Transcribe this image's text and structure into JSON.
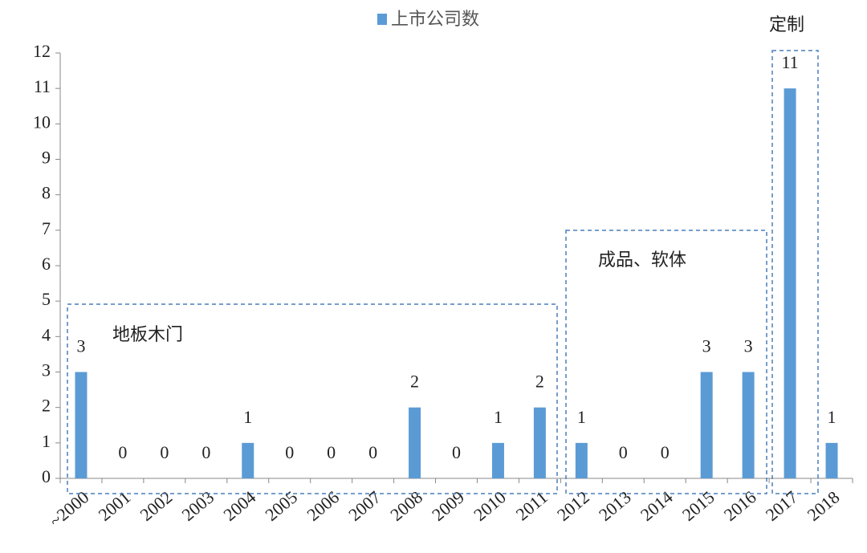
{
  "chart_data": {
    "type": "bar",
    "legend": "上市公司数",
    "annotations": [
      "地板木门",
      "成品、软体",
      "定制"
    ],
    "categories": [
      "~2000",
      "2001",
      "2002",
      "2003",
      "2004",
      "2005",
      "2006",
      "2007",
      "2008",
      "2009",
      "2010",
      "2011",
      "2012",
      "2013",
      "2014",
      "2015",
      "2016",
      "2017",
      "2018"
    ],
    "values": [
      3,
      0,
      0,
      0,
      1,
      0,
      0,
      0,
      2,
      0,
      1,
      2,
      1,
      0,
      0,
      3,
      3,
      11,
      1
    ],
    "color": "#5b9bd5",
    "ylim": [
      0,
      12
    ],
    "yticks": [
      0,
      1,
      2,
      3,
      4,
      5,
      6,
      7,
      8,
      9,
      10,
      11,
      12
    ],
    "grid": false
  }
}
